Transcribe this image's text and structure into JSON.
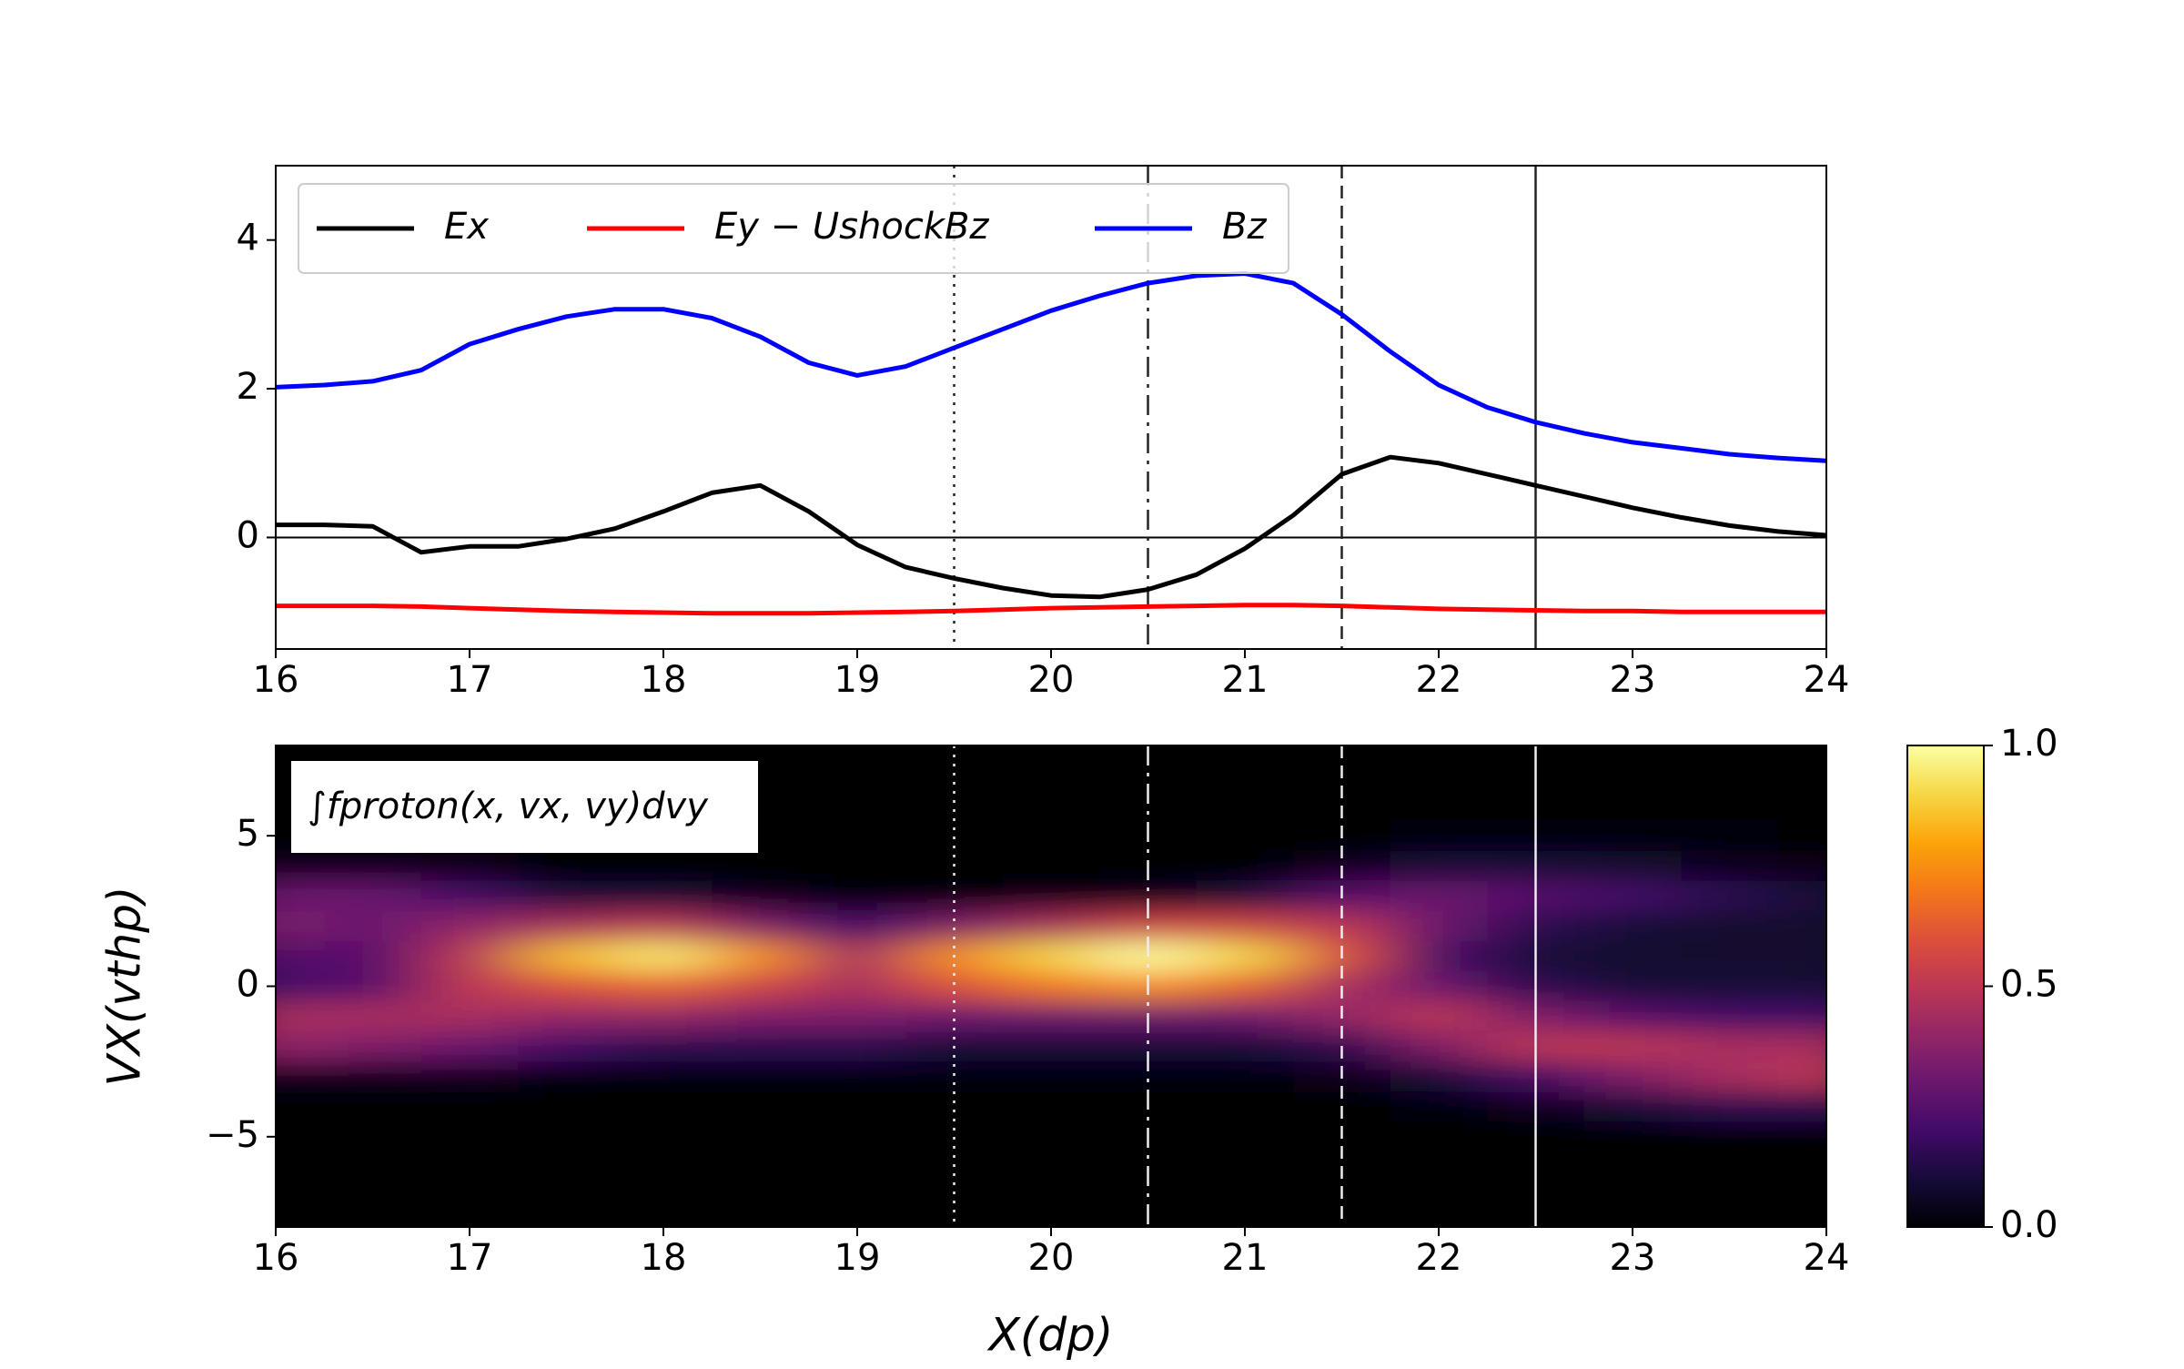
{
  "chart_data": [
    {
      "type": "line",
      "x": [
        16,
        16.25,
        16.5,
        16.75,
        17,
        17.25,
        17.5,
        17.75,
        18,
        18.25,
        18.5,
        18.75,
        19,
        19.25,
        19.5,
        19.75,
        20,
        20.25,
        20.5,
        20.75,
        21,
        21.25,
        21.5,
        21.75,
        22,
        22.25,
        22.5,
        22.75,
        23,
        23.25,
        23.5,
        23.75,
        24
      ],
      "series": [
        {
          "name": "Ex",
          "color": "#000000",
          "values": [
            0.17,
            0.17,
            0.15,
            -0.2,
            -0.12,
            -0.12,
            -0.02,
            0.12,
            0.35,
            0.6,
            0.7,
            0.35,
            -0.1,
            -0.4,
            -0.55,
            -0.68,
            -0.78,
            -0.8,
            -0.7,
            -0.5,
            -0.15,
            0.3,
            0.85,
            1.08,
            1.0,
            0.85,
            0.7,
            0.55,
            0.4,
            0.27,
            0.16,
            0.08,
            0.03
          ]
        },
        {
          "name": "Ey − UshockBz",
          "color": "#ff0000",
          "values": [
            -0.92,
            -0.92,
            -0.92,
            -0.93,
            -0.95,
            -0.97,
            -0.99,
            -1.0,
            -1.01,
            -1.02,
            -1.02,
            -1.02,
            -1.01,
            -1.0,
            -0.99,
            -0.97,
            -0.95,
            -0.94,
            -0.93,
            -0.92,
            -0.91,
            -0.91,
            -0.92,
            -0.94,
            -0.96,
            -0.97,
            -0.98,
            -0.99,
            -0.99,
            -1.0,
            -1.0,
            -1.0,
            -1.0
          ]
        },
        {
          "name": "Bz",
          "color": "#0000ff",
          "values": [
            2.02,
            2.05,
            2.1,
            2.25,
            2.6,
            2.8,
            2.97,
            3.07,
            3.07,
            2.95,
            2.7,
            2.35,
            2.18,
            2.3,
            2.55,
            2.8,
            3.05,
            3.25,
            3.42,
            3.52,
            3.55,
            3.42,
            3.0,
            2.5,
            2.05,
            1.75,
            1.55,
            1.4,
            1.28,
            1.2,
            1.12,
            1.07,
            1.03
          ]
        }
      ],
      "xlim": [
        16,
        24
      ],
      "xticks": [
        16,
        17,
        18,
        19,
        20,
        21,
        22,
        23,
        24
      ],
      "ylim": [
        -1.5,
        5
      ],
      "yticks": [
        0,
        2,
        4
      ],
      "hline": 0,
      "vlines": [
        {
          "x": 19.5,
          "style": "dotted"
        },
        {
          "x": 20.5,
          "style": "dashdot"
        },
        {
          "x": 21.5,
          "style": "dashed"
        },
        {
          "x": 22.5,
          "style": "solid"
        }
      ],
      "legend": "upper left"
    },
    {
      "type": "heatmap",
      "x": [
        16,
        16.5,
        17,
        17.5,
        18,
        18.5,
        19,
        19.5,
        20,
        20.5,
        21,
        21.5,
        22,
        22.5,
        23,
        23.5,
        24
      ],
      "y": [
        8,
        7,
        6,
        5,
        4,
        3,
        2,
        1,
        0,
        -1,
        -2,
        -3,
        -4,
        -5,
        -6,
        -7,
        -8
      ],
      "z": [
        [
          0,
          0,
          0,
          0,
          0,
          0,
          0,
          0,
          0,
          0,
          0,
          0,
          0,
          0,
          0,
          0,
          0
        ],
        [
          0,
          0,
          0,
          0,
          0,
          0,
          0,
          0,
          0,
          0,
          0,
          0,
          0,
          0,
          0,
          0,
          0
        ],
        [
          0,
          0,
          0,
          0,
          0,
          0,
          0,
          0,
          0,
          0,
          0,
          0,
          0,
          0,
          0,
          0,
          0
        ],
        [
          0,
          0,
          0,
          0,
          0,
          0,
          0,
          0,
          0,
          0,
          0,
          0,
          0.02,
          0.02,
          0.02,
          0.02,
          0
        ],
        [
          0.05,
          0.05,
          0.03,
          0,
          0,
          0,
          0,
          0,
          0,
          0,
          0,
          0.05,
          0.1,
          0.1,
          0.08,
          0.05,
          0.03
        ],
        [
          0.3,
          0.3,
          0.2,
          0.1,
          0.1,
          0.05,
          0.02,
          0.02,
          0.03,
          0.05,
          0.1,
          0.25,
          0.3,
          0.25,
          0.2,
          0.15,
          0.1
        ],
        [
          0.35,
          0.3,
          0.4,
          0.45,
          0.5,
          0.35,
          0.2,
          0.35,
          0.45,
          0.55,
          0.55,
          0.5,
          0.3,
          0.15,
          0.1,
          0.08,
          0.08
        ],
        [
          0.25,
          0.25,
          0.5,
          0.85,
          0.95,
          0.75,
          0.45,
          0.75,
          0.9,
          1.0,
          0.9,
          0.6,
          0.2,
          0.1,
          0.08,
          0.08,
          0.08
        ],
        [
          0.2,
          0.25,
          0.5,
          0.6,
          0.65,
          0.55,
          0.45,
          0.6,
          0.7,
          0.75,
          0.65,
          0.45,
          0.3,
          0.15,
          0.1,
          0.1,
          0.1
        ],
        [
          0.45,
          0.45,
          0.45,
          0.4,
          0.4,
          0.35,
          0.35,
          0.3,
          0.3,
          0.3,
          0.3,
          0.4,
          0.5,
          0.35,
          0.25,
          0.2,
          0.2
        ],
        [
          0.4,
          0.35,
          0.3,
          0.2,
          0.15,
          0.15,
          0.15,
          0.1,
          0.1,
          0.1,
          0.1,
          0.15,
          0.35,
          0.5,
          0.5,
          0.45,
          0.45
        ],
        [
          0.05,
          0.05,
          0.05,
          0.02,
          0.02,
          0.02,
          0.02,
          0.02,
          0.02,
          0.02,
          0.02,
          0.03,
          0.1,
          0.2,
          0.35,
          0.45,
          0.5
        ],
        [
          0,
          0,
          0,
          0,
          0,
          0,
          0,
          0,
          0,
          0,
          0,
          0,
          0.02,
          0.05,
          0.1,
          0.15,
          0.15
        ],
        [
          0,
          0,
          0,
          0,
          0,
          0,
          0,
          0,
          0,
          0,
          0,
          0,
          0,
          0,
          0,
          0,
          0
        ],
        [
          0,
          0,
          0,
          0,
          0,
          0,
          0,
          0,
          0,
          0,
          0,
          0,
          0,
          0,
          0,
          0,
          0
        ],
        [
          0,
          0,
          0,
          0,
          0,
          0,
          0,
          0,
          0,
          0,
          0,
          0,
          0,
          0,
          0,
          0,
          0
        ],
        [
          0,
          0,
          0,
          0,
          0,
          0,
          0,
          0,
          0,
          0,
          0,
          0,
          0,
          0,
          0,
          0,
          0
        ]
      ],
      "colormap": "inferno",
      "xlim": [
        16,
        24
      ],
      "xticks": [
        16,
        17,
        18,
        19,
        20,
        21,
        22,
        23,
        24
      ],
      "ylim": [
        -8,
        8
      ],
      "yticks": [
        {
          "value": -5,
          "label": "−5"
        },
        0,
        5
      ],
      "clim": [
        0,
        1
      ],
      "cticks": [
        {
          "value": 0,
          "label": "0.0"
        },
        0.5,
        {
          "value": 1,
          "label": "1.0"
        }
      ],
      "vlines": [
        {
          "x": 19.5,
          "style": "dotted"
        },
        {
          "x": 20.5,
          "style": "dashdot"
        },
        {
          "x": 21.5,
          "style": "dashed"
        },
        {
          "x": 22.5,
          "style": "solid"
        }
      ],
      "annotation": "∫fproton(x, vx, vy)dvy",
      "xlabel": "X(dp)",
      "ylabel": "VX(vthp)"
    }
  ]
}
